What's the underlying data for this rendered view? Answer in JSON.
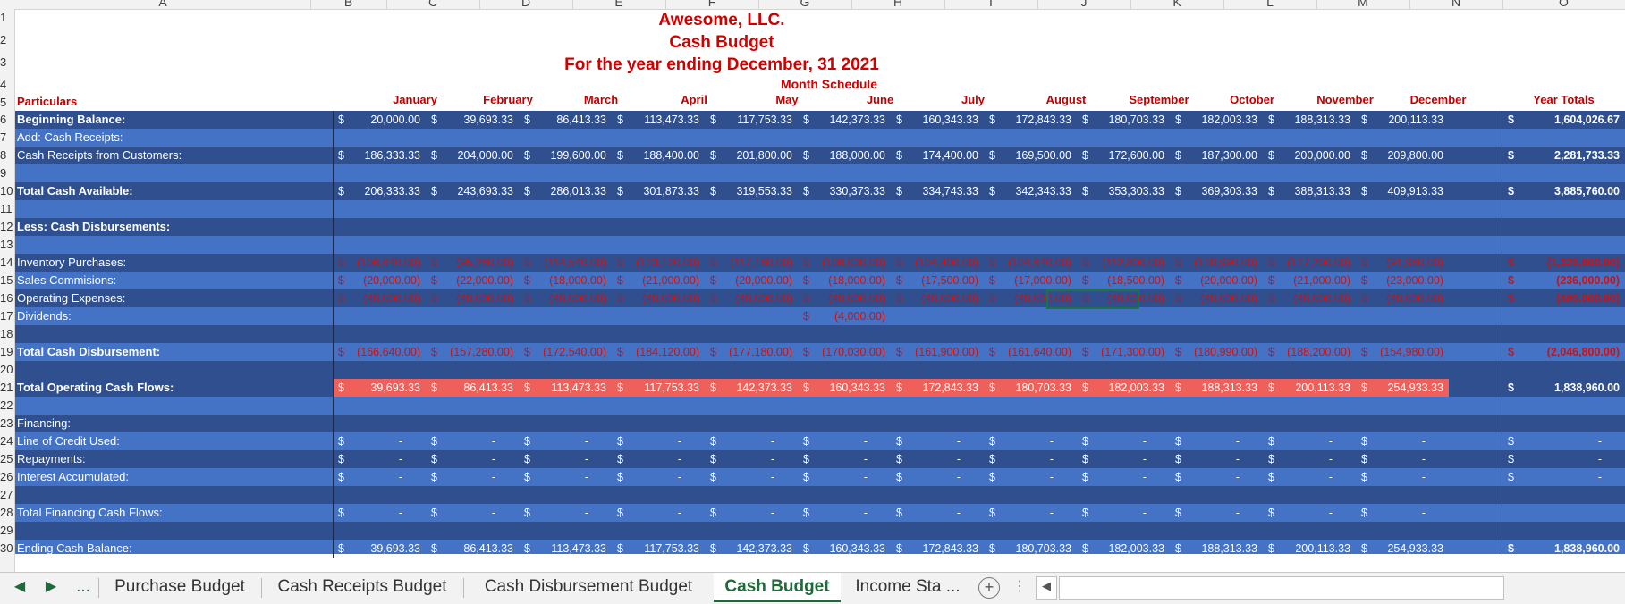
{
  "column_letters": [
    "A",
    "B",
    "C",
    "D",
    "E",
    "F",
    "G",
    "H",
    "I",
    "J",
    "K",
    "L",
    "M",
    "N",
    "O"
  ],
  "row_numbers": [
    "1",
    "2",
    "3",
    "4",
    "5",
    "6",
    "7",
    "8",
    "9",
    "10",
    "11",
    "12",
    "13",
    "14",
    "15",
    "16",
    "17",
    "18",
    "19",
    "20",
    "21",
    "22",
    "23",
    "24",
    "25",
    "26",
    "27",
    "28",
    "29",
    "30"
  ],
  "titles": {
    "company": "Awesome, LLC.",
    "report": "Cash Budget",
    "period": "For the year ending December, 31 2021",
    "schedule": "Month Schedule"
  },
  "header": {
    "particulars": "Particulars",
    "months": [
      "January",
      "February",
      "March",
      "April",
      "May",
      "June",
      "July",
      "August",
      "September",
      "October",
      "November",
      "December"
    ],
    "totals": "Year Totals"
  },
  "currency": "$",
  "rows": {
    "beginning_balance": {
      "label": "Beginning Balance:",
      "values": [
        "20,000.00",
        "39,693.33",
        "86,413.33",
        "113,473.33",
        "117,753.33",
        "142,373.33",
        "160,343.33",
        "172,843.33",
        "180,703.33",
        "182,003.33",
        "188,313.33",
        "200,113.33"
      ],
      "total": "1,604,026.67"
    },
    "add_cash_receipts": {
      "label": "Add: Cash Receipts:"
    },
    "cash_receipts_customers": {
      "label": "Cash Receipts from Customers:",
      "values": [
        "186,333.33",
        "204,000.00",
        "199,600.00",
        "188,400.00",
        "201,800.00",
        "188,000.00",
        "174,400.00",
        "169,500.00",
        "172,600.00",
        "187,300.00",
        "200,000.00",
        "209,800.00"
      ],
      "total": "2,281,733.33"
    },
    "total_cash_available": {
      "label": "Total Cash Available:",
      "values": [
        "206,333.33",
        "243,693.33",
        "286,013.33",
        "301,873.33",
        "319,553.33",
        "330,373.33",
        "334,743.33",
        "342,343.33",
        "353,303.33",
        "369,303.33",
        "388,313.33",
        "409,913.33"
      ],
      "total": "3,885,760.00"
    },
    "less_cash_disbursements": {
      "label": "Less: Cash Disbursements:"
    },
    "inventory_purchases": {
      "label": "Inventory Purchases:",
      "values": [
        "(106,640.00)",
        "(95,280.00)",
        "(114,540.00)",
        "(123,120.00)",
        "(117,180.00)",
        "(108,030.00)",
        "(104,400.00)",
        "(104,640.00)",
        "(112,800.00)",
        "(120,990.00)",
        "(127,200.00)",
        "(91,980.00)"
      ],
      "total": "(1,326,800.00)"
    },
    "sales_commissions": {
      "label": "Sales Commisions:",
      "values": [
        "(20,000.00)",
        "(22,000.00)",
        "(18,000.00)",
        "(21,000.00)",
        "(20,000.00)",
        "(18,000.00)",
        "(17,500.00)",
        "(17,000.00)",
        "(18,500.00)",
        "(20,000.00)",
        "(21,000.00)",
        "(23,000.00)"
      ],
      "total": "(236,000.00)"
    },
    "operating_expenses": {
      "label": "Operating Expenses:",
      "values": [
        "(40,000.00)",
        "(40,000.00)",
        "(40,000.00)",
        "(40,000.00)",
        "(40,000.00)",
        "(40,000.00)",
        "(40,000.00)",
        "(40,000.00)",
        "(40,000.00)",
        "(40,000.00)",
        "(40,000.00)",
        "(40,000.00)"
      ],
      "total": "(480,000.00)"
    },
    "dividends": {
      "label": "Dividends:",
      "june_value": "(4,000.00)"
    },
    "total_cash_disbursement": {
      "label": "Total Cash Disbursement:",
      "values": [
        "(166,640.00)",
        "(157,280.00)",
        "(172,540.00)",
        "(184,120.00)",
        "(177,180.00)",
        "(170,030.00)",
        "(161,900.00)",
        "(161,640.00)",
        "(171,300.00)",
        "(180,990.00)",
        "(188,200.00)",
        "(154,980.00)"
      ],
      "total": "(2,046,800.00)"
    },
    "total_operating_cash_flows": {
      "label": "Total Operating Cash Flows:",
      "values": [
        "39,693.33",
        "86,413.33",
        "113,473.33",
        "117,753.33",
        "142,373.33",
        "160,343.33",
        "172,843.33",
        "180,703.33",
        "182,003.33",
        "188,313.33",
        "200,113.33",
        "254,933.33"
      ],
      "total": "1,838,960.00"
    },
    "financing": {
      "label": "Financing:"
    },
    "line_of_credit": {
      "label": "Line of Credit Used:",
      "dash": "-"
    },
    "repayments": {
      "label": "Repayments:",
      "dash": "-"
    },
    "interest_accumulated": {
      "label": "Interest Accumulated:",
      "dash": "-"
    },
    "total_financing": {
      "label": "Total Financing Cash Flows:",
      "dash": "-"
    },
    "ending_cash_balance": {
      "label": "Ending Cash Balance:",
      "values": [
        "39,693.33",
        "86,413.33",
        "113,473.33",
        "117,753.33",
        "142,373.33",
        "160,343.33",
        "172,843.33",
        "180,703.33",
        "182,003.33",
        "188,313.33",
        "200,113.33",
        "254,933.33"
      ],
      "total": "1,838,960.00"
    }
  },
  "sheet_tabs": {
    "more": "...",
    "tabs": [
      "Purchase Budget",
      "Cash Receipts Budget",
      "Cash Disbursement Budget",
      "Cash Budget",
      "Income Sta ..."
    ],
    "active": "Cash Budget",
    "add": "+"
  },
  "colors": {
    "dark_row": "#2f4f8f",
    "light_row": "#4472c4",
    "negative": "#d01010",
    "highlight": "#f0605a",
    "title": "#d00000"
  }
}
